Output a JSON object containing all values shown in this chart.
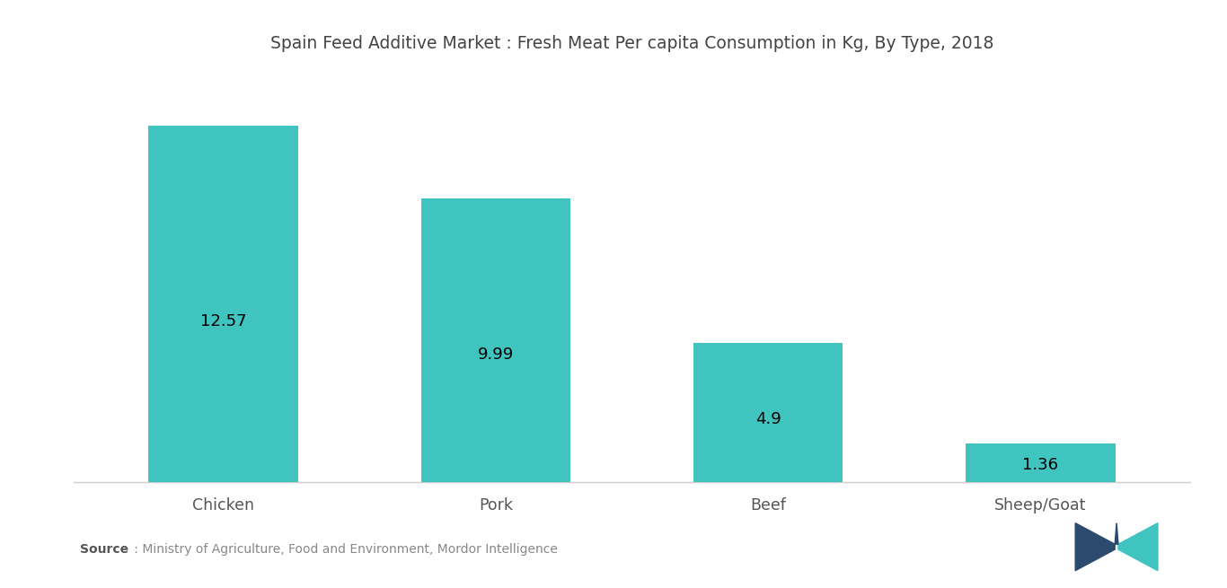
{
  "title": "Spain Feed Additive Market : Fresh Meat Per capita Consumption in Kg, By Type, 2018",
  "categories": [
    "Chicken",
    "Pork",
    "Beef",
    "Sheep/Goat"
  ],
  "values": [
    12.57,
    9.99,
    4.9,
    1.36
  ],
  "bar_color": "#40C4C0",
  "bar_width": 0.55,
  "value_labels": [
    "12.57",
    "9.99",
    "4.9",
    "1.36"
  ],
  "ylim": [
    0,
    14.5
  ],
  "title_fontsize": 13.5,
  "label_fontsize": 13,
  "tick_fontsize": 12.5,
  "source_bold": "Source",
  "source_rest": " : Ministry of Agriculture, Food and Environment, Mordor Intelligence",
  "background_color": "#ffffff"
}
